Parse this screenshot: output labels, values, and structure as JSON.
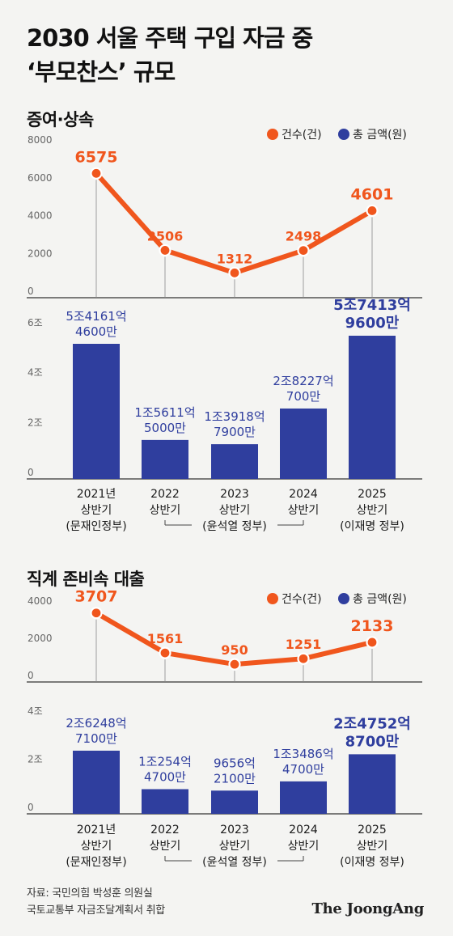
{
  "title": {
    "line1": "2030 서울 주택 구입 자금 중",
    "line2": "‘부모찬스’ 규모"
  },
  "legend": {
    "count": "건수(건)",
    "amount": "총 금액(원)"
  },
  "colors": {
    "count": "#f0561d",
    "amount": "#2f3e9e",
    "axis": "#333333",
    "text": "#1a1a1a"
  },
  "periods": [
    [
      "2021년",
      "상반기",
      "(문재인정부)"
    ],
    [
      "2022",
      "상반기",
      ""
    ],
    [
      "2023",
      "상반기",
      "(윤석열 정부)"
    ],
    [
      "2024",
      "상반기",
      ""
    ],
    [
      "2025",
      "상반기",
      "(이재명 정부)"
    ]
  ],
  "chart_data": [
    {
      "type": "line",
      "title": "증여·상속",
      "series": [
        {
          "name": "건수(건)",
          "values": [
            6575,
            2506,
            1312,
            2498,
            4601
          ]
        }
      ],
      "value_labels": [
        "6575",
        "2506",
        "1312",
        "2498",
        "4601"
      ],
      "ylim": [
        0,
        8000
      ],
      "yticks": [
        "0",
        "2000",
        "4000",
        "6000",
        "8000"
      ],
      "grid": false
    },
    {
      "type": "bar",
      "series": [
        {
          "name": "총 금액(원)",
          "values": [
            5.4161,
            1.5611,
            1.3918,
            2.8227,
            5.7413
          ]
        }
      ],
      "value_labels": [
        [
          "5조4161억",
          "4600만"
        ],
        [
          "1조5611억",
          "5000만"
        ],
        [
          "1조3918억",
          "7900만"
        ],
        [
          "2조8227억",
          "700만"
        ],
        [
          "5조7413억",
          "9600만"
        ]
      ],
      "ylim": [
        0,
        6
      ],
      "yticks": [
        "0",
        "2조",
        "4조",
        "6조"
      ],
      "grid": false
    },
    {
      "type": "line",
      "title": "직계 존비속 대출",
      "series": [
        {
          "name": "건수(건)",
          "values": [
            3707,
            1561,
            950,
            1251,
            2133
          ]
        }
      ],
      "value_labels": [
        "3707",
        "1561",
        "950",
        "1251",
        "2133"
      ],
      "ylim": [
        0,
        4000
      ],
      "yticks": [
        "0",
        "2000",
        "4000"
      ],
      "grid": false
    },
    {
      "type": "bar",
      "series": [
        {
          "name": "총 금액(원)",
          "values": [
            2.6248,
            1.0254,
            0.9656,
            1.3486,
            2.4752
          ]
        }
      ],
      "value_labels": [
        [
          "2조6248억",
          "7100만"
        ],
        [
          "1조254억",
          "4700만"
        ],
        [
          "9656억",
          "2100만"
        ],
        [
          "1조3486억",
          "4700만"
        ],
        [
          "2조4752억",
          "8700만"
        ]
      ],
      "ylim": [
        0,
        4
      ],
      "yticks": [
        "0",
        "2조",
        "4조"
      ],
      "grid": false
    }
  ],
  "source": {
    "line1": "자료: 국민의힘 박성훈 의원실",
    "line2": "국토교통부 자금조달계획서 취합"
  },
  "brand": "The JoongAng"
}
